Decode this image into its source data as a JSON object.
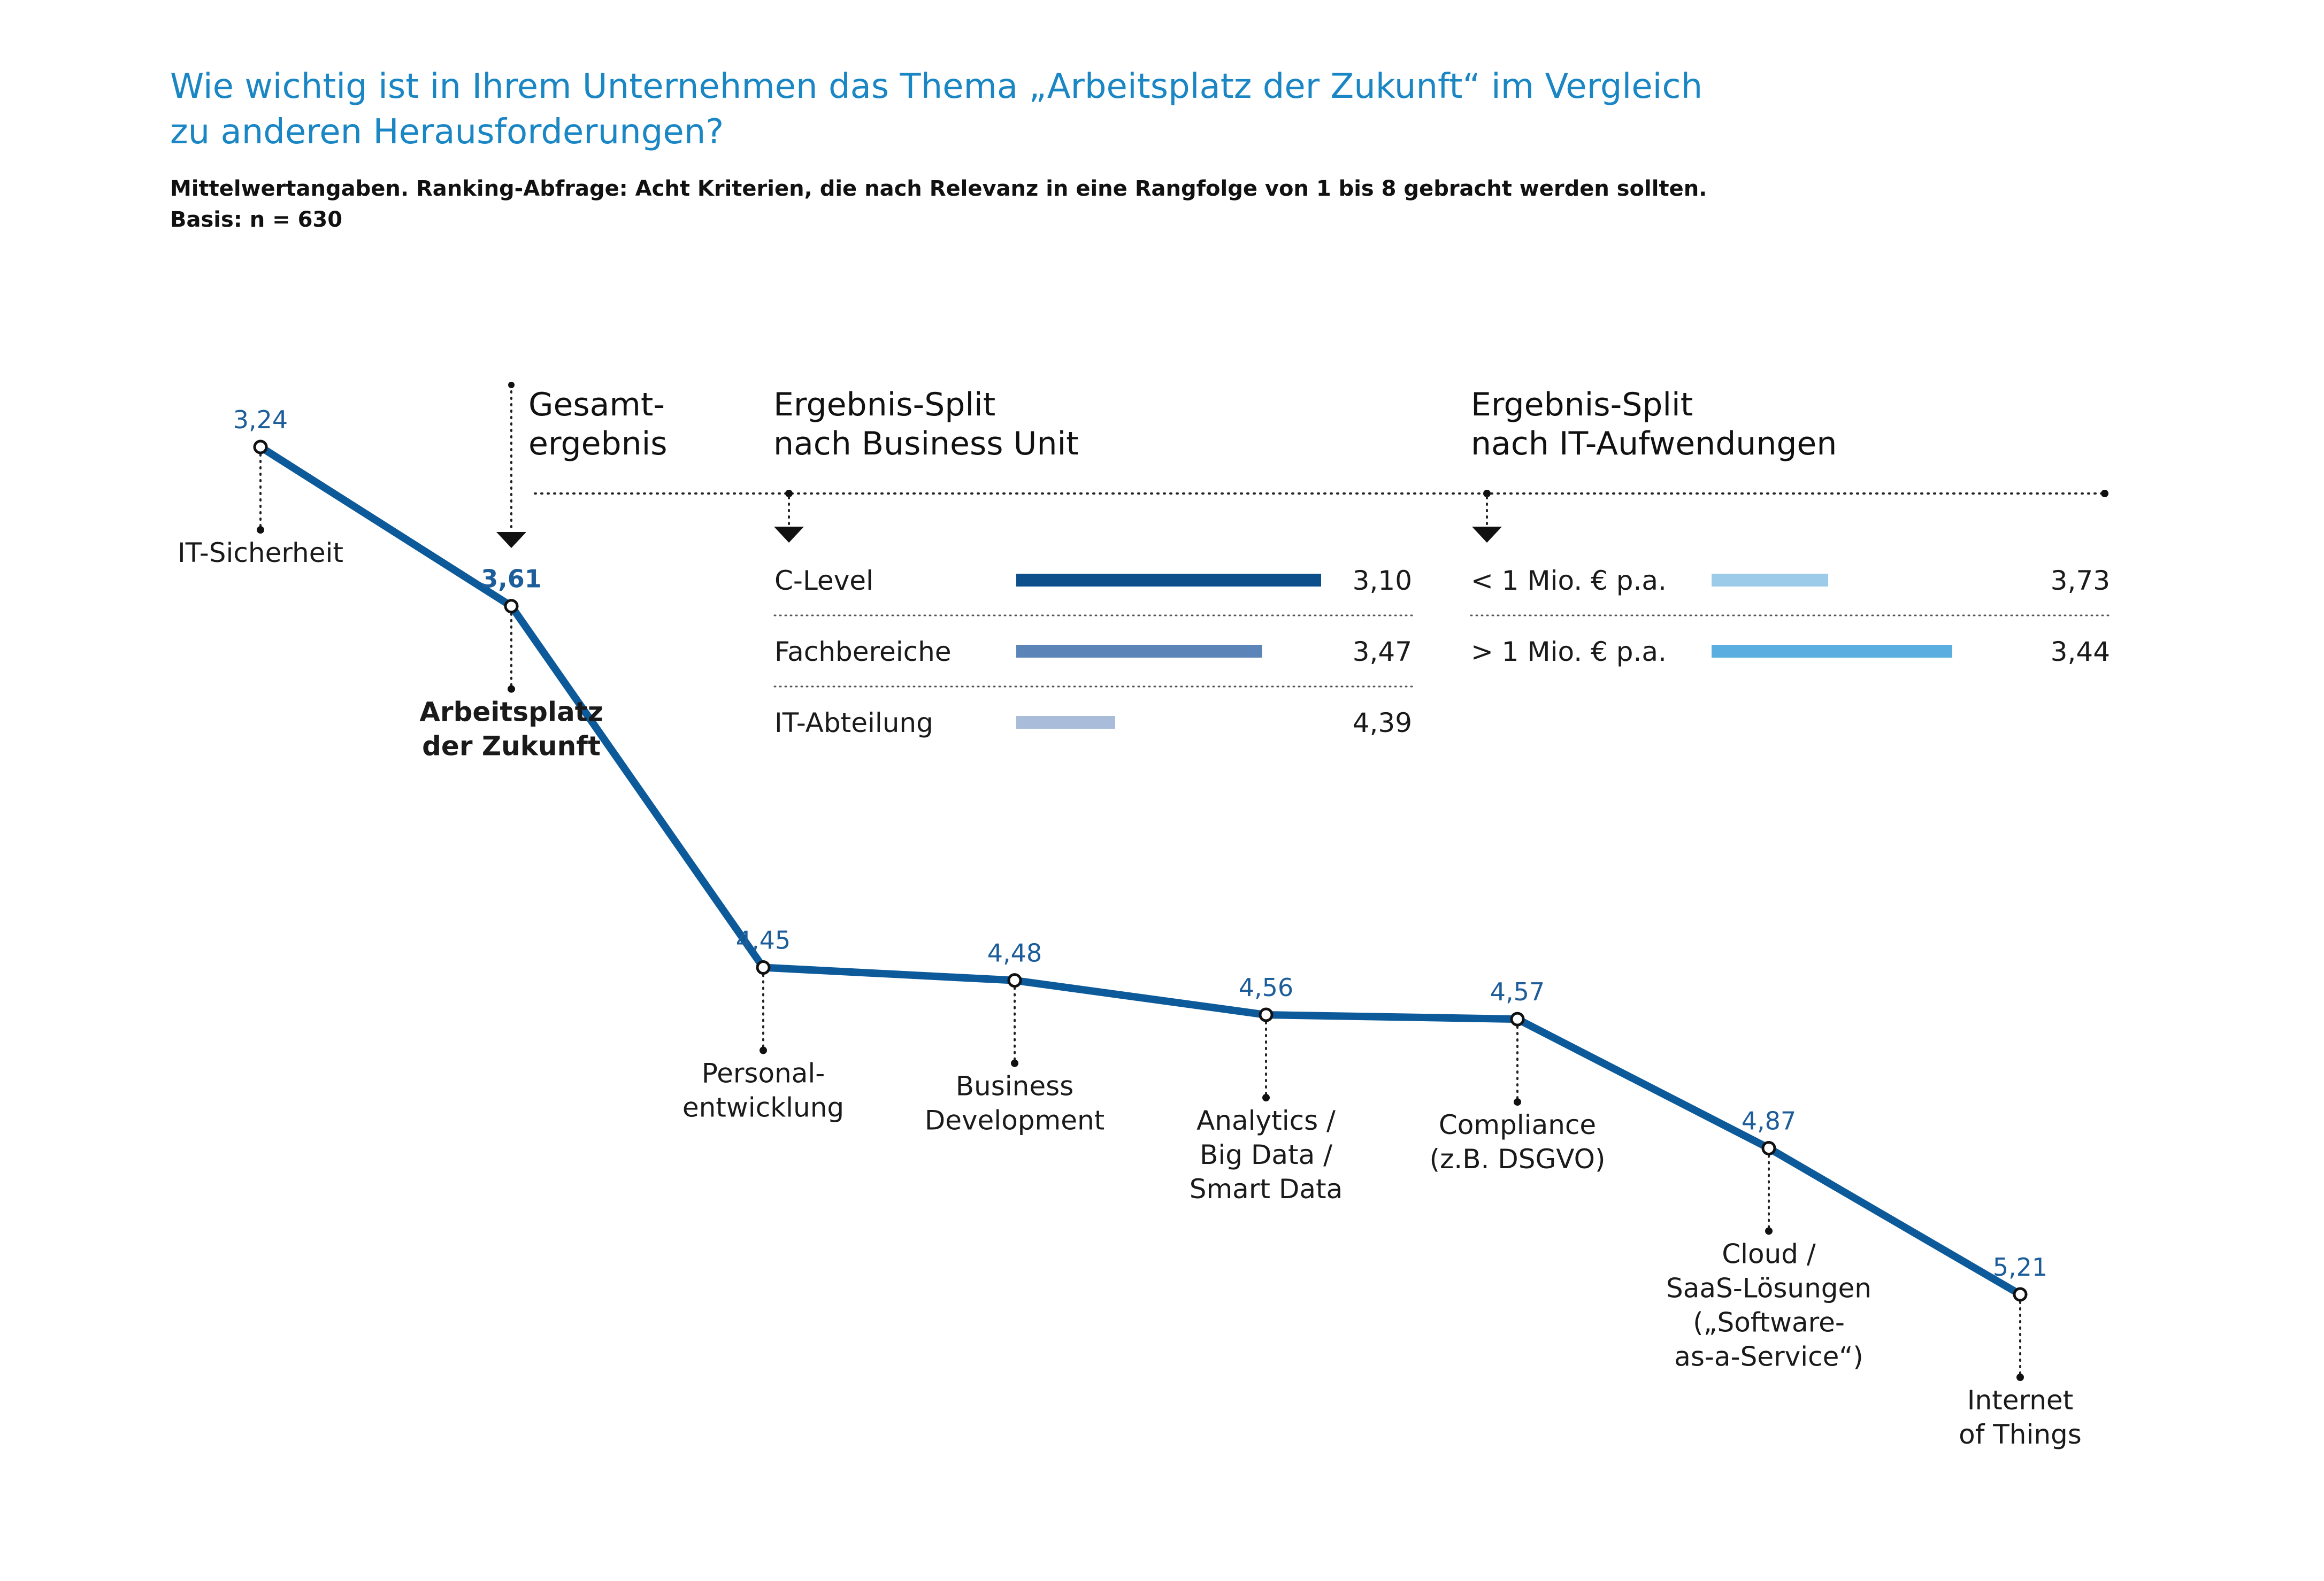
{
  "title_lines": [
    "Wie wichtig ist in Ihrem Unternehmen das Thema „Arbeitsplatz der Zukunft“ im Vergleich",
    "zu anderen Herausforderungen?"
  ],
  "subtitle_lines": [
    "Mittelwertangaben. Ranking-Abfrage: Acht Kriterien, die nach Relevanz in eine Rangfolge von 1 bis 8 gebracht werden sollten.",
    "Basis: n = 630"
  ],
  "colors": {
    "line": "#0d5a9a",
    "title": "#1a86c4",
    "c_level": "#0d4f8b",
    "fachbereiche": "#5b85b8",
    "it_abteilung": "#a9bcda",
    "under_1m": "#9ccbea",
    "over_1m": "#5aafe0"
  },
  "chart_data": [
    {
      "type": "line",
      "title": "",
      "categories": [
        "IT-Sicherheit",
        "Arbeitsplatz der Zukunft",
        "Personalentwicklung",
        "Business Development",
        "Analytics / Big Data / Smart Data",
        "Compliance (z.B. DSGVO)",
        "Cloud / SaaS-Lösungen („Software-as-a-Service“)",
        "Internet of Things"
      ],
      "label_lines": [
        [
          "IT-Sicherheit"
        ],
        [
          "Arbeitsplatz",
          "der Zukunft"
        ],
        [
          "Personal-",
          "entwicklung"
        ],
        [
          "Business",
          "Development"
        ],
        [
          "Analytics /",
          "Big Data /",
          "Smart Data"
        ],
        [
          "Compliance",
          "(z.B. DSGVO)"
        ],
        [
          "Cloud /",
          "SaaS-Lösungen",
          "(„Software-",
          "as-a-Service“)"
        ],
        [
          "Internet",
          "of Things"
        ]
      ],
      "values": [
        3.24,
        3.61,
        4.45,
        4.48,
        4.56,
        4.57,
        4.87,
        5.21
      ],
      "value_labels": [
        "3,24",
        "3,61",
        "4,45",
        "4,48",
        "4,56",
        "4,57",
        "4,87",
        "5,21"
      ],
      "highlight_index": 1,
      "y_direction": "inverted",
      "grid": false
    },
    {
      "type": "bar",
      "orientation": "horizontal",
      "heading": [
        "Ergebnis-Split",
        "nach Business Unit"
      ],
      "categories": [
        "C-Level",
        "Fachbereiche",
        "IT-Abteilung"
      ],
      "values": [
        3.1,
        3.47,
        4.39
      ],
      "value_labels": [
        "3,10",
        "3,47",
        "4,39"
      ]
    },
    {
      "type": "bar",
      "orientation": "horizontal",
      "heading": [
        "Ergebnis-Split",
        "nach IT-Aufwendungen"
      ],
      "categories": [
        "< 1 Mio. € p.a.",
        "> 1 Mio. € p.a."
      ],
      "values": [
        3.73,
        3.44
      ],
      "value_labels": [
        "3,73",
        "3,44"
      ]
    }
  ],
  "overall_heading": [
    "Gesamt-",
    "ergebnis"
  ]
}
